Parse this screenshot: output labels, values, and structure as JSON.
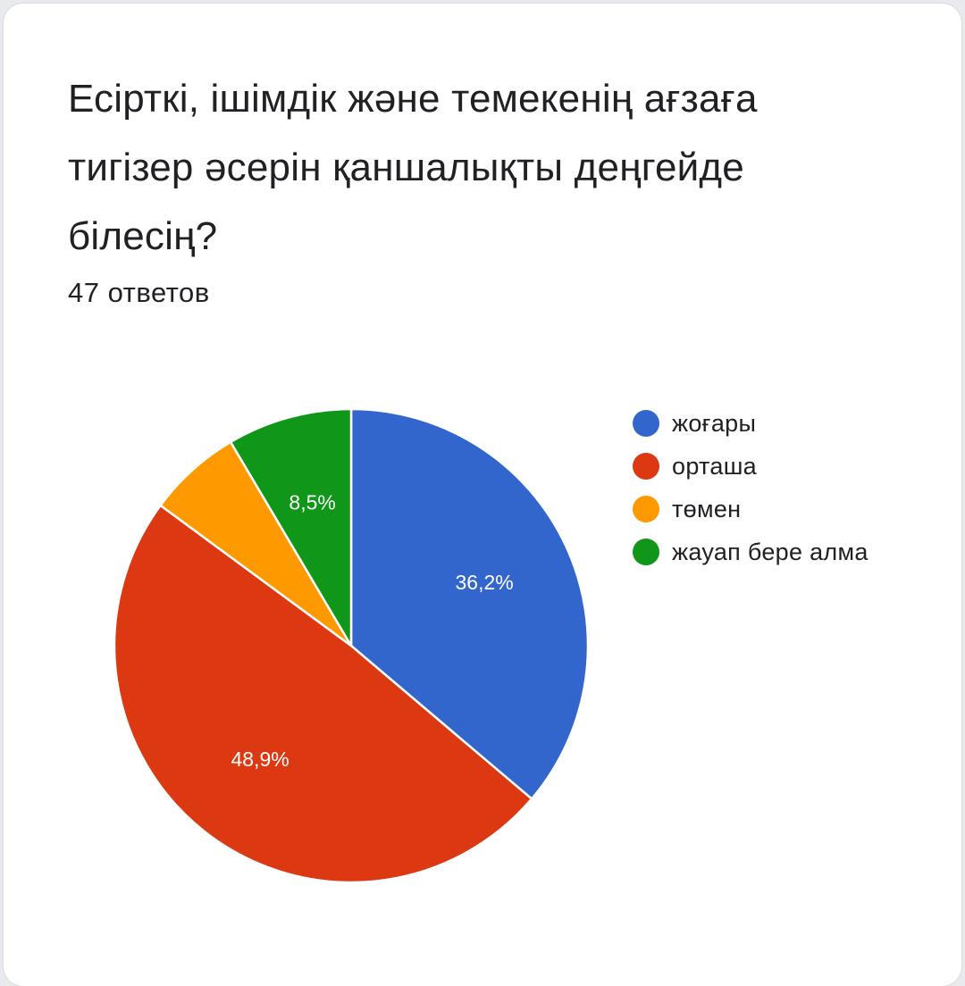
{
  "question": {
    "title": "Есірткі, ішімдік және темекенің ағзаға тигізер әсерін қаншалықты деңгейде білесің?",
    "responses_label": "47 ответов"
  },
  "chart_data": {
    "type": "pie",
    "title": "",
    "categories": [
      "жоғары",
      "орташа",
      "төмен",
      "жауап бере алма"
    ],
    "values": [
      36.2,
      48.9,
      6.4,
      8.5
    ],
    "labels": [
      "36,2%",
      "48,9%",
      "",
      "8,5%"
    ],
    "colors": [
      "#3366cc",
      "#dc3912",
      "#ff9900",
      "#109618"
    ],
    "legend_position": "right",
    "start_angle_degrees": 90,
    "direction": "clockwise"
  }
}
